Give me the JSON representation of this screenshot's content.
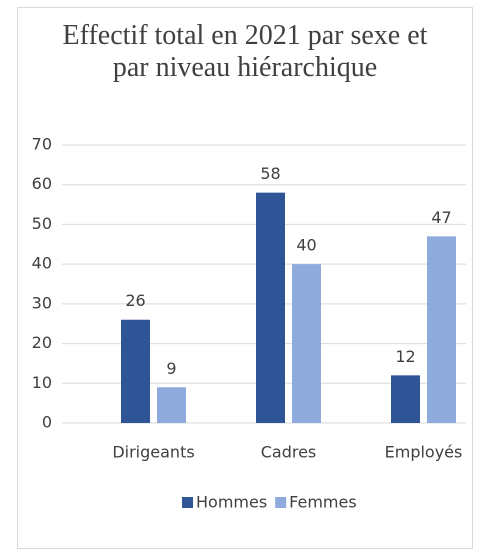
{
  "chart_data": {
    "type": "bar",
    "title": "Effectif total en 2021 par sexe et par niveau hiérarchique",
    "categories": [
      "Dirigeants",
      "Cadres",
      "Employés"
    ],
    "series": [
      {
        "name": "Hommes",
        "color": "#2f5597",
        "values": [
          26,
          58,
          12
        ]
      },
      {
        "name": "Femmes",
        "color": "#8faadc",
        "values": [
          9,
          40,
          47
        ]
      }
    ],
    "ylim": [
      0,
      70
    ],
    "yticks": [
      0,
      10,
      20,
      30,
      40,
      50,
      60,
      70
    ],
    "grid": true,
    "legend": "bottom"
  }
}
